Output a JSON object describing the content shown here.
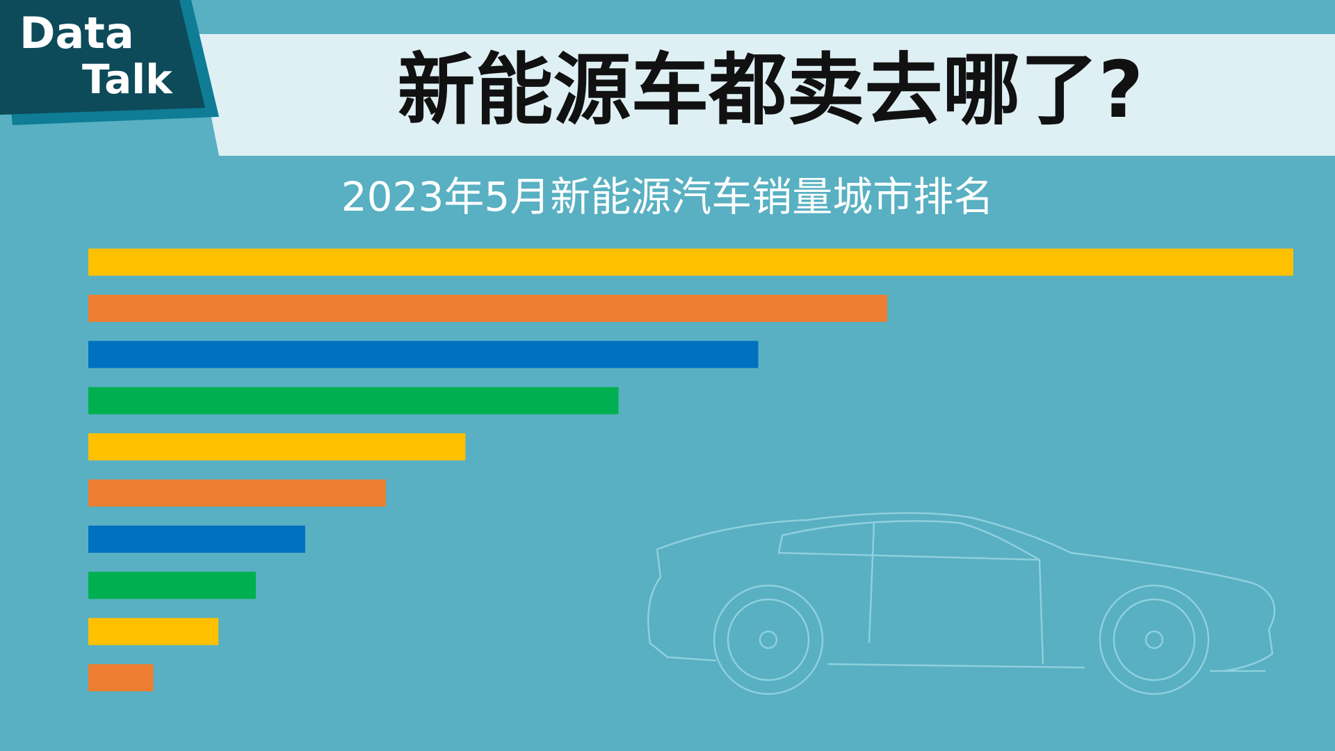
{
  "logo": {
    "line1": "Data",
    "line2": "Talk"
  },
  "chart_data": {
    "type": "bar",
    "orientation": "horizontal",
    "title": "新能源车都卖去哪了?",
    "subtitle": "2023年5月新能源汽车销量城市排名",
    "categories": [
      null,
      null,
      null,
      null,
      null,
      null,
      null,
      null,
      null,
      null
    ],
    "values": [
      100,
      66.3,
      55.6,
      44.0,
      31.3,
      24.7,
      18.0,
      13.9,
      10.8,
      5.4
    ],
    "colors": [
      "#ffc000",
      "#ed7d31",
      "#0070c0",
      "#00b050",
      "#ffc000",
      "#ed7d31",
      "#0070c0",
      "#00b050",
      "#ffc000",
      "#ed7d31"
    ],
    "xlim": [
      0,
      100
    ]
  }
}
